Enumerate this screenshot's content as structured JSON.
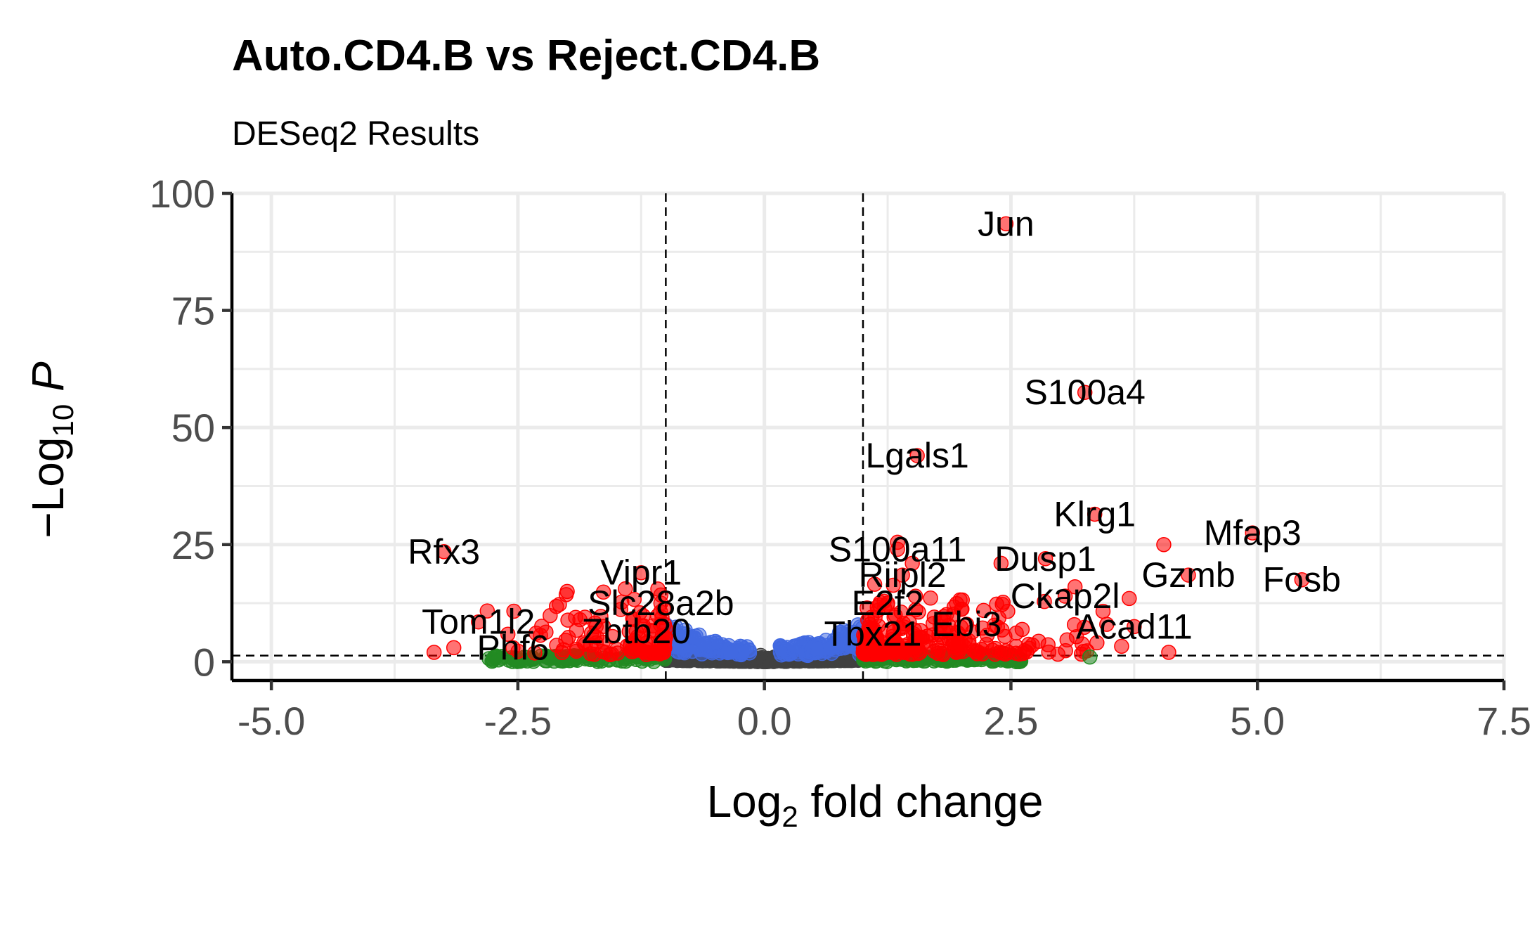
{
  "chart_data": {
    "type": "scatter",
    "title": "Auto.CD4.B vs Reject.CD4.B",
    "subtitle": "DESeq2 Results",
    "xlabel": "Log2 fold change",
    "ylabel": "−Log10 P",
    "xlim": [
      -5.4,
      7.5
    ],
    "ylim": [
      -4,
      100
    ],
    "x_ticks": [
      -5.0,
      -2.5,
      0.0,
      2.5,
      5.0,
      7.5
    ],
    "x_tick_labels": [
      "-5.0",
      "-2.5",
      "0.0",
      "2.5",
      "5.0",
      "7.5"
    ],
    "y_ticks": [
      0,
      25,
      50,
      75,
      100
    ],
    "y_tick_labels": [
      "0",
      "25",
      "50",
      "75",
      "100"
    ],
    "grid": true,
    "fc_cutoffs": [
      -1,
      1
    ],
    "p_cutoff_line": 1.3,
    "colors": {
      "ns": "#404040",
      "log2fc_only": "#228b22",
      "p_only": "#4169e1",
      "p_and_log2fc": "#ff0000"
    },
    "labeled_points": [
      {
        "gene": "Jun",
        "x": 2.45,
        "y": 93.5
      },
      {
        "gene": "S100a4",
        "x": 3.25,
        "y": 57.5
      },
      {
        "gene": "Lgals1",
        "x": 1.55,
        "y": 44.0
      },
      {
        "gene": "Klrg1",
        "x": 3.35,
        "y": 31.5
      },
      {
        "gene": "Mfap3",
        "x": 4.95,
        "y": 27.5
      },
      {
        "gene": "Rfx3",
        "x": -3.25,
        "y": 23.5
      },
      {
        "gene": "S100a11",
        "x": 1.35,
        "y": 24.0
      },
      {
        "gene": "Dusp1",
        "x": 2.85,
        "y": 22.0
      },
      {
        "gene": "Vipr1",
        "x": -1.25,
        "y": 19.0
      },
      {
        "gene": "Riipl2",
        "x": 1.4,
        "y": 18.5
      },
      {
        "gene": "Gzmb",
        "x": 4.3,
        "y": 18.5
      },
      {
        "gene": "Fosb",
        "x": 5.45,
        "y": 17.5
      },
      {
        "gene": "Ckap2l",
        "x": 3.05,
        "y": 14.0
      },
      {
        "gene": "Slc28a2b",
        "x": -1.05,
        "y": 12.5
      },
      {
        "gene": "E2f2",
        "x": 1.25,
        "y": 12.5
      },
      {
        "gene": "Tom1l2",
        "x": -2.9,
        "y": 8.5
      },
      {
        "gene": "Ebi3",
        "x": 2.05,
        "y": 8.0
      },
      {
        "gene": "Zbtb20",
        "x": -1.3,
        "y": 6.5
      },
      {
        "gene": "Tbx21",
        "x": 1.1,
        "y": 6.0
      },
      {
        "gene": "Acad11",
        "x": 3.75,
        "y": 7.5
      },
      {
        "gene": "Phf6",
        "x": -2.55,
        "y": 3.0
      }
    ]
  }
}
